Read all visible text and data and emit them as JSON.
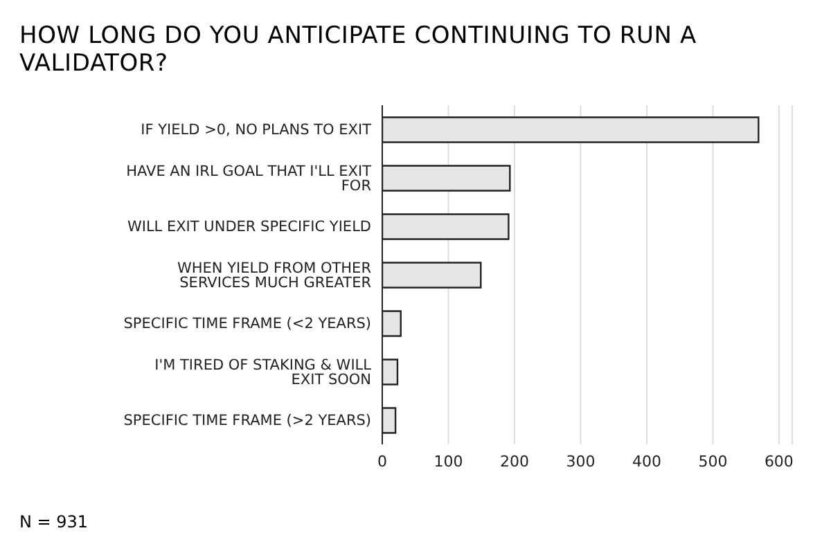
{
  "chart_data": {
    "type": "bar",
    "orientation": "horizontal",
    "title": "HOW LONG DO YOU ANTICIPATE CONTINUING TO RUN A VALIDATOR?",
    "categories": [
      "IF YIELD >0, NO PLANS TO EXIT",
      "HAVE AN IRL GOAL THAT I'LL EXIT FOR",
      "WILL EXIT UNDER SPECIFIC YIELD",
      "WHEN YIELD FROM OTHER SERVICES MUCH GREATER",
      "SPECIFIC TIME FRAME (<2 YEARS)",
      "I'M TIRED OF STAKING & WILL EXIT SOON",
      "SPECIFIC TIME FRAME (>2 YEARS)"
    ],
    "values": [
      569,
      193,
      191,
      149,
      28,
      23,
      20
    ],
    "color": "#e6e6e6",
    "xlim": [
      0,
      620
    ],
    "xticks": [
      0,
      100,
      200,
      300,
      400,
      500,
      600
    ],
    "grid": "x",
    "legend": false,
    "annotations": [
      "N = 931"
    ]
  }
}
